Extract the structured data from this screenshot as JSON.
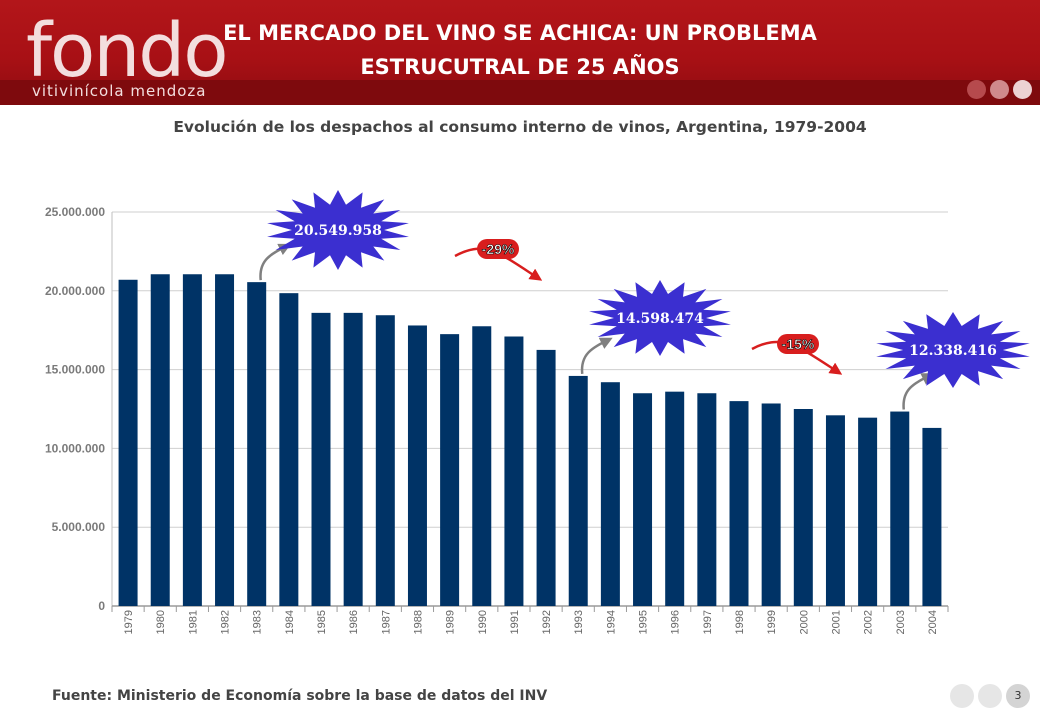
{
  "header": {
    "logo_main": "fondo",
    "logo_sub": "vitivinícola mendoza",
    "title_line1": "EL MERCADO DEL VINO SE ACHICA: UN PROBLEMA",
    "title_line2": "ESTRUCUTRAL DE 25 AÑOS"
  },
  "subtitle": "Evolución de los despachos al consumo interno de vinos, Argentina, 1979-2004",
  "footer": {
    "source": "Fuente: Ministerio de Economía sobre la base de datos del INV",
    "page_number": "3"
  },
  "colors": {
    "bar": "#003366",
    "header_red": "#a81015",
    "burst": "#3b2fd0",
    "badge": "#d81e1e",
    "arrow_red": "#d81e1e",
    "arrow_gray": "#808080"
  },
  "chart_data": {
    "type": "bar",
    "title": "Evolución de los despachos al consumo interno de vinos, Argentina, 1979-2004",
    "xlabel": "",
    "ylabel": "",
    "ylim": [
      0,
      25000000
    ],
    "yticks": [
      0,
      5000000,
      10000000,
      15000000,
      20000000,
      25000000
    ],
    "ytick_labels": [
      "0",
      "5.000.000",
      "10.000.000",
      "15.000.000",
      "20.000.000",
      "25.000.000"
    ],
    "grid": true,
    "legend": "none",
    "categories": [
      "1979",
      "1980",
      "1981",
      "1982",
      "1983",
      "1984",
      "1985",
      "1986",
      "1987",
      "1988",
      "1989",
      "1990",
      "1991",
      "1992",
      "1993",
      "1994",
      "1995",
      "1996",
      "1997",
      "1998",
      "1999",
      "2000",
      "2001",
      "2002",
      "2003",
      "2004"
    ],
    "values": [
      20700000,
      21050000,
      21050000,
      21050000,
      20549958,
      19850000,
      18600000,
      18600000,
      18450000,
      17800000,
      17250000,
      17750000,
      17100000,
      16250000,
      14598474,
      14200000,
      13500000,
      13600000,
      13500000,
      13000000,
      12850000,
      12500000,
      12100000,
      11950000,
      12338416,
      11300000
    ],
    "annotations": [
      {
        "type": "value-burst",
        "category": "1983",
        "text": "20.549.958"
      },
      {
        "type": "value-burst",
        "category": "1993",
        "text": "14.598.474"
      },
      {
        "type": "value-burst",
        "category": "2003",
        "text": "12.338.416"
      },
      {
        "type": "change-badge",
        "text": "-29%",
        "from": "1983",
        "to": "1993"
      },
      {
        "type": "change-badge",
        "text": "-15%",
        "from": "1993",
        "to": "2003"
      }
    ]
  }
}
